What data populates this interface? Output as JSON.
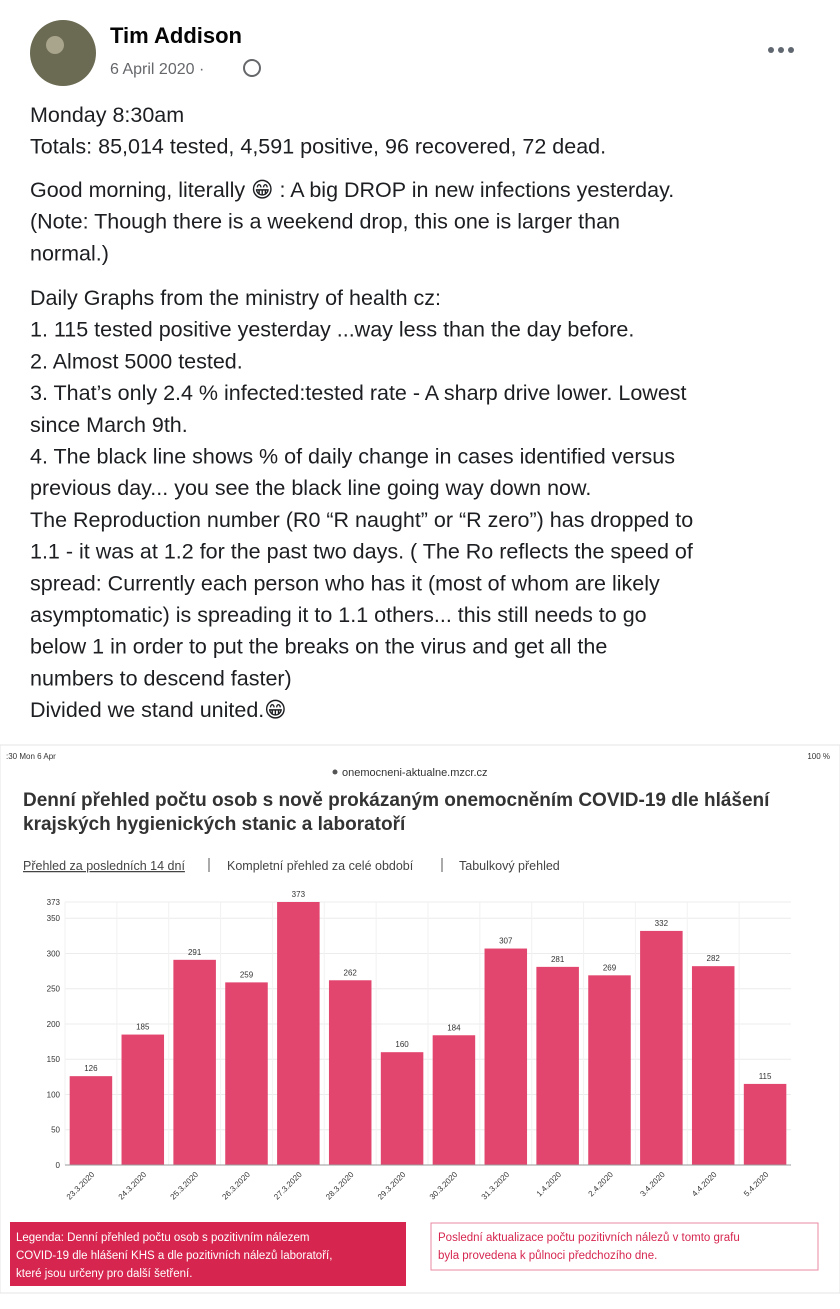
{
  "post": {
    "author": "Tim Addison",
    "date": "6 April 2020 ·",
    "paragraphs": [
      [
        "Monday 8:30am",
        "Totals: 85,014 tested, 4,591 positive, 96 recovered, 72 dead."
      ],
      [
        "Good morning, literally 😁 : A big DROP in new infections yesterday.",
        "(Note: Though there is a weekend drop, this one is larger than",
        "normal.)"
      ],
      [
        "Daily Graphs from the ministry of health cz:",
        "1.  115 tested positive yesterday ...way less than the day before.",
        "2. Almost 5000 tested.",
        "3. That’s only 2.4 % infected:tested rate - A sharp drive lower. Lowest",
        "since March 9th.",
        "4.  The black line shows % of daily change in cases identified versus",
        "previous day... you see the black line going way down now.",
        "The Reproduction number (R0 “R naught” or “R zero”) has dropped to",
        "1.1   - it was at 1.2 for the past two days. ( The Ro reflects the speed of",
        "spread:  Currently each person who has it (most of whom are likely",
        "asymptomatic) is spreading it to 1.1 others... this still needs to go",
        "below 1 in order to put the breaks on the virus and get all the",
        "numbers to descend faster)",
        "Divided we stand united.😁"
      ]
    ]
  },
  "screenshot": {
    "status_time": ":30  Mon 6 Apr",
    "status_battery": "100 %",
    "url": "onemocneni-aktualne.mzcr.cz",
    "tabs": [
      "Přehled za posledních 14 dní",
      "Kompletní přehled za celé období",
      "Tabulkový přehled"
    ],
    "legend_box": [
      "Legenda: Denní přehled počtu osob s pozitivním nálezem",
      "COVID-19 dle hlášení KHS a dle pozitivních nálezů laboratoří,",
      "které jsou určeny pro další šetření."
    ],
    "update_box": [
      "Poslední aktualizace počtu pozitivních nálezů v tomto grafu",
      "byla provedena k půlnoci předchozího dne."
    ]
  },
  "chart_data": {
    "type": "bar",
    "title": [
      "Denní přehled počtu osob s nově prokázaným onemocněním COVID-19 dle hlášení",
      "krajských hygienických stanic a laboratoří"
    ],
    "categories": [
      "23.3.2020",
      "24.3.2020",
      "25.3.2020",
      "26.3.2020",
      "27.3.2020",
      "28.3.2020",
      "29.3.2020",
      "30.3.2020",
      "31.3.2020",
      "1.4.2020",
      "2.4.2020",
      "3.4.2020",
      "4.4.2020",
      "5.4.2020"
    ],
    "values": [
      126,
      185,
      291,
      259,
      373,
      262,
      160,
      184,
      307,
      281,
      269,
      332,
      282,
      115
    ],
    "color": "#e2466f",
    "ylim": [
      0,
      373
    ],
    "yticks": [
      0,
      50,
      100,
      150,
      200,
      250,
      300,
      350,
      373
    ],
    "grid": true
  }
}
